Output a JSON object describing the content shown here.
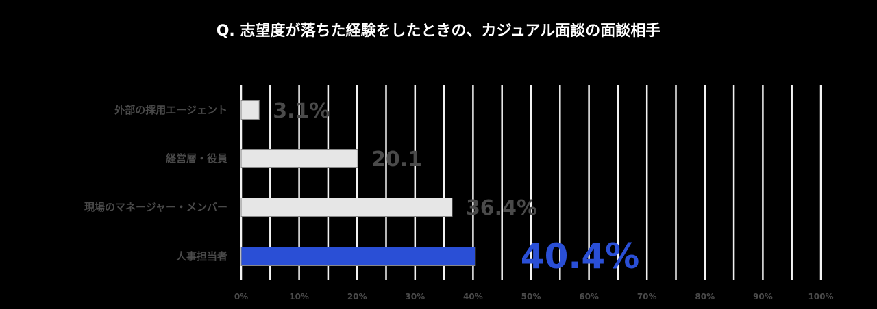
{
  "chart_data": {
    "type": "bar",
    "orientation": "horizontal",
    "title": "Q. 志望度が落ちた経験をしたときの、カジュアル面談の面談相手",
    "categories": [
      "外部の採用エージェント",
      "経営層・役員",
      "現場のマネージャー・メンバー",
      "人事担当者"
    ],
    "values": [
      3.1,
      20.1,
      36.4,
      40.4
    ],
    "value_labels": [
      "3.1%",
      "20.1",
      "36.4%",
      "40.4%"
    ],
    "xlim": [
      0,
      100
    ],
    "x_ticks": [
      "0%",
      "10%",
      "20%",
      "30%",
      "40%",
      "50%",
      "60%",
      "70%",
      "80%",
      "90%",
      "100%"
    ],
    "grid": true,
    "colors": {
      "bar_default": "#e6e6e6",
      "bar_highlight": "#2a4fd6",
      "label_default": "#4a4a4a",
      "label_highlight": "#2a4fd6"
    },
    "highlight_index": 3
  }
}
